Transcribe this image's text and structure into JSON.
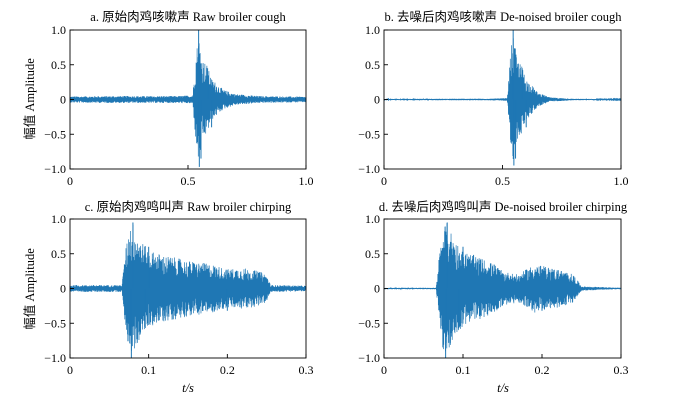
{
  "figure": {
    "xlabel_shared": "t/s",
    "line_color": "#1f77b4"
  },
  "chart_data": [
    {
      "id": "a",
      "type": "line",
      "title": "a. 原始肉鸡咳嗽声 Raw broiler cough",
      "xlabel": "",
      "ylabel": "幅值 Amplitude",
      "xlim": [
        0,
        1.0
      ],
      "ylim": [
        -1.0,
        1.0
      ],
      "xticks": [
        0,
        0.5,
        1.0
      ],
      "xtick_labels": [
        "0",
        "0.5",
        "1.0"
      ],
      "yticks": [
        1.0,
        0.5,
        0,
        -0.5,
        -1.0
      ],
      "ytick_labels": [
        "1.0",
        "0.5",
        "0",
        "−0.5",
        "−1.0"
      ],
      "grid": false,
      "series": [
        {
          "envelope": [
            [
              0.0,
              0.045
            ],
            [
              0.2,
              0.05
            ],
            [
              0.45,
              0.05
            ],
            [
              0.52,
              0.06
            ],
            [
              0.535,
              0.7
            ],
            [
              0.545,
              0.95
            ],
            [
              0.56,
              0.6
            ],
            [
              0.58,
              0.5
            ],
            [
              0.6,
              0.3
            ],
            [
              0.65,
              0.14
            ],
            [
              0.7,
              0.08
            ],
            [
              0.8,
              0.05
            ],
            [
              1.0,
              0.04
            ]
          ],
          "peak_points": [
            [
              0.545,
              1.0
            ],
            [
              0.548,
              -0.97
            ],
            [
              0.555,
              -0.85
            ],
            [
              0.583,
              0.45
            ],
            [
              0.6,
              -0.4
            ]
          ]
        }
      ]
    },
    {
      "id": "b",
      "type": "line",
      "title": "b. 去噪后肉鸡咳嗽声 De-noised broiler cough",
      "xlabel": "",
      "ylabel": "",
      "xlim": [
        0,
        1.0
      ],
      "ylim": [
        -1.0,
        1.0
      ],
      "xticks": [
        0,
        0.5,
        1.0
      ],
      "xtick_labels": [
        "0",
        "0.5",
        "1.0"
      ],
      "yticks": [
        1.0,
        0.5,
        0,
        -0.5,
        -1.0
      ],
      "ytick_labels": [
        "1.0",
        "0.5",
        "0",
        "−0.5",
        "−1.0"
      ],
      "grid": false,
      "series": [
        {
          "envelope": [
            [
              0.0,
              0.008
            ],
            [
              0.2,
              0.01
            ],
            [
              0.45,
              0.012
            ],
            [
              0.52,
              0.02
            ],
            [
              0.535,
              0.7
            ],
            [
              0.545,
              0.95
            ],
            [
              0.56,
              0.6
            ],
            [
              0.58,
              0.5
            ],
            [
              0.6,
              0.3
            ],
            [
              0.65,
              0.1
            ],
            [
              0.7,
              0.03
            ],
            [
              0.8,
              0.01
            ],
            [
              1.0,
              0.005
            ]
          ],
          "peak_points": [
            [
              0.545,
              1.0
            ],
            [
              0.548,
              -0.95
            ],
            [
              0.555,
              -0.85
            ],
            [
              0.583,
              0.45
            ],
            [
              0.6,
              -0.4
            ]
          ]
        }
      ]
    },
    {
      "id": "c",
      "type": "line",
      "title": "c. 原始肉鸡鸣叫声 Raw broiler chirping",
      "xlabel": "",
      "ylabel": "幅值 Amplitude",
      "xlim": [
        0,
        0.3
      ],
      "ylim": [
        -1.0,
        1.0
      ],
      "xticks": [
        0,
        0.1,
        0.2,
        0.3
      ],
      "xtick_labels": [
        "0",
        "0.1",
        "0.2",
        "0.3"
      ],
      "yticks": [
        1.0,
        0.5,
        0,
        -0.5,
        -1.0
      ],
      "ytick_labels": [
        "1.0",
        "0.5",
        "0",
        "−0.5",
        "−1.0"
      ],
      "grid": false,
      "series": [
        {
          "envelope": [
            [
              0.0,
              0.05
            ],
            [
              0.066,
              0.05
            ],
            [
              0.07,
              0.5
            ],
            [
              0.075,
              0.9
            ],
            [
              0.08,
              0.95
            ],
            [
              0.09,
              0.7
            ],
            [
              0.1,
              0.55
            ],
            [
              0.12,
              0.48
            ],
            [
              0.15,
              0.4
            ],
            [
              0.18,
              0.35
            ],
            [
              0.2,
              0.28
            ],
            [
              0.22,
              0.3
            ],
            [
              0.24,
              0.25
            ],
            [
              0.25,
              0.2
            ],
            [
              0.255,
              0.05
            ],
            [
              0.3,
              0.04
            ]
          ],
          "peak_points": [
            [
              0.08,
              0.95
            ],
            [
              0.078,
              -1.0
            ],
            [
              0.1,
              0.6
            ],
            [
              0.095,
              -0.55
            ],
            [
              0.2,
              -0.32
            ]
          ]
        }
      ]
    },
    {
      "id": "d",
      "type": "line",
      "title": "d. 去噪后肉鸡鸣叫声 De-noised broiler chirping",
      "xlabel": "",
      "ylabel": "",
      "xlim": [
        0,
        0.3
      ],
      "ylim": [
        -1.0,
        1.0
      ],
      "xticks": [
        0,
        0.1,
        0.2,
        0.3
      ],
      "xtick_labels": [
        "0",
        "0.1",
        "0.2",
        "0.3"
      ],
      "yticks": [
        1.0,
        0.5,
        0,
        -0.5,
        -1.0
      ],
      "ytick_labels": [
        "1.0",
        "0.5",
        "0",
        "−0.5",
        "−1.0"
      ],
      "grid": false,
      "series": [
        {
          "envelope": [
            [
              0.0,
              0.01
            ],
            [
              0.066,
              0.01
            ],
            [
              0.07,
              0.5
            ],
            [
              0.075,
              0.9
            ],
            [
              0.08,
              0.95
            ],
            [
              0.09,
              0.7
            ],
            [
              0.1,
              0.55
            ],
            [
              0.12,
              0.45
            ],
            [
              0.14,
              0.35
            ],
            [
              0.15,
              0.25
            ],
            [
              0.17,
              0.2
            ],
            [
              0.19,
              0.35
            ],
            [
              0.22,
              0.28
            ],
            [
              0.24,
              0.2
            ],
            [
              0.25,
              0.03
            ],
            [
              0.3,
              0.01
            ]
          ],
          "peak_points": [
            [
              0.08,
              0.95
            ],
            [
              0.078,
              -1.0
            ],
            [
              0.1,
              0.6
            ],
            [
              0.095,
              -0.55
            ],
            [
              0.2,
              -0.32
            ]
          ]
        }
      ]
    }
  ]
}
